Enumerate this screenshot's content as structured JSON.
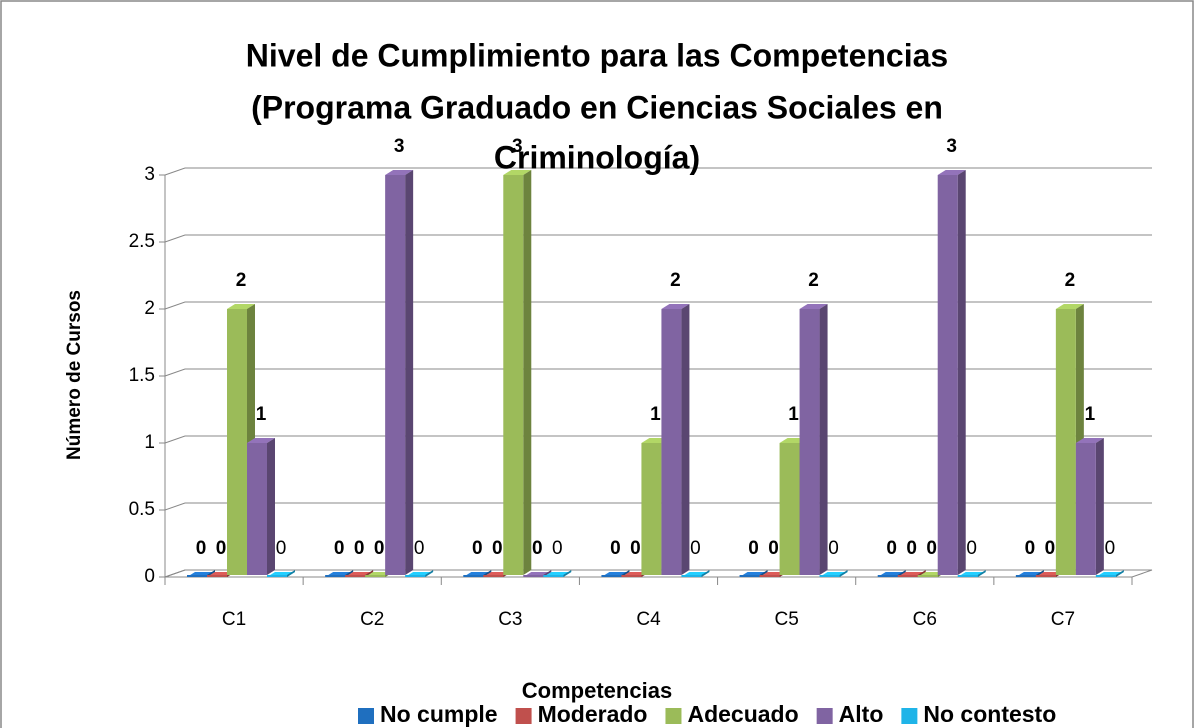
{
  "chart_data": {
    "type": "bar3d",
    "title": [
      "Nivel de Cumplimiento para las Competencias",
      "(Programa Graduado en Ciencias Sociales en",
      "Criminología)"
    ],
    "x_label": "Competencias",
    "y_label": "Número de Cursos",
    "categories": [
      "C1",
      "C2",
      "C3",
      "C4",
      "C5",
      "C6",
      "C7"
    ],
    "series": [
      {
        "name": "No cumple",
        "color": "#1f6fbf",
        "values": [
          0,
          0,
          0,
          0,
          0,
          0,
          0
        ]
      },
      {
        "name": "Moderado",
        "color": "#c0504d",
        "values": [
          0,
          0,
          0,
          0,
          0,
          0,
          0
        ]
      },
      {
        "name": "Adecuado",
        "color": "#9bbb59",
        "values": [
          2,
          0,
          3,
          1,
          1,
          0,
          2
        ]
      },
      {
        "name": "Alto",
        "color": "#8064a2",
        "values": [
          1,
          3,
          0,
          2,
          2,
          3,
          1
        ]
      },
      {
        "name": "No contesto",
        "color": "#1fb4e8",
        "values": [
          0,
          0,
          0,
          0,
          0,
          0,
          0
        ]
      }
    ],
    "ylim": [
      0,
      3
    ],
    "yticks": [
      0,
      0.5,
      1,
      1.5,
      2,
      2.5,
      3
    ],
    "grid": true,
    "legend": "bottom"
  }
}
